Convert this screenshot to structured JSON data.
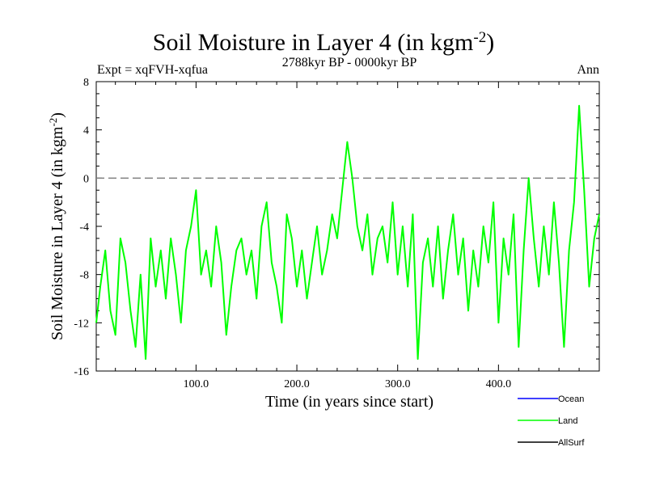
{
  "chart_data": {
    "type": "line",
    "title_main": "Soil Moisture in Layer 4 (in kgm",
    "title_sup": "-2",
    "title_close": ")",
    "subtitle": "2788kyr BP - 0000kyr BP",
    "left_label": "Expt = xqFVH-xqfua",
    "right_label": "Ann",
    "xlabel": "Time (in years since start)",
    "ylabel_main": "Soil Moisture in Layer 4 (in kgm",
    "ylabel_sup": "-2",
    "ylabel_close": ")",
    "xlim": [
      1,
      500
    ],
    "ylim": [
      -16,
      8
    ],
    "x_ticks": [
      100,
      200,
      300,
      400
    ],
    "x_tick_labels": [
      "100.0",
      "200.0",
      "300.0",
      "400.0"
    ],
    "y_ticks": [
      -16,
      -12,
      -8,
      -4,
      0,
      4,
      8
    ],
    "y_tick_labels": [
      "-16",
      "-12",
      "-8",
      "-4",
      "0",
      "4",
      "8"
    ],
    "reference_line": {
      "y": 0,
      "style": "dashed",
      "color": "#808080"
    },
    "legend": [
      {
        "name": "Ocean",
        "color": "#0000ff"
      },
      {
        "name": "Land",
        "color": "#00ff00"
      },
      {
        "name": "AllSurf",
        "color": "#000000"
      }
    ],
    "series": [
      {
        "name": "Land",
        "color": "#00ff00",
        "x": [
          1,
          5,
          10,
          15,
          20,
          25,
          30,
          35,
          40,
          45,
          50,
          55,
          60,
          65,
          70,
          75,
          80,
          85,
          90,
          95,
          100,
          105,
          110,
          115,
          120,
          125,
          130,
          135,
          140,
          145,
          150,
          155,
          160,
          165,
          170,
          175,
          180,
          185,
          190,
          195,
          200,
          205,
          210,
          215,
          220,
          225,
          230,
          235,
          240,
          245,
          250,
          255,
          260,
          265,
          270,
          275,
          280,
          285,
          290,
          295,
          300,
          305,
          310,
          315,
          320,
          325,
          330,
          335,
          340,
          345,
          350,
          355,
          360,
          365,
          370,
          375,
          380,
          385,
          390,
          395,
          400,
          405,
          410,
          415,
          420,
          425,
          430,
          435,
          440,
          445,
          450,
          455,
          460,
          465,
          470,
          475,
          480,
          485,
          490,
          495,
          500
        ],
        "values": [
          -12,
          -9,
          -6,
          -11,
          -13,
          -5,
          -7,
          -11,
          -14,
          -8,
          -15,
          -5,
          -9,
          -6,
          -10,
          -5,
          -8,
          -12,
          -6,
          -4,
          -1,
          -8,
          -6,
          -9,
          -4,
          -7,
          -13,
          -9,
          -6,
          -5,
          -8,
          -6,
          -10,
          -4,
          -2,
          -7,
          -9,
          -12,
          -3,
          -5,
          -9,
          -6,
          -10,
          -7,
          -4,
          -8,
          -6,
          -3,
          -5,
          -1,
          3,
          0,
          -4,
          -6,
          -3,
          -8,
          -5,
          -4,
          -7,
          -2,
          -8,
          -4,
          -9,
          -3,
          -15,
          -7,
          -5,
          -9,
          -4,
          -10,
          -6,
          -3,
          -8,
          -5,
          -11,
          -6,
          -9,
          -4,
          -7,
          -2,
          -12,
          -5,
          -8,
          -3,
          -14,
          -6,
          0,
          -5,
          -9,
          -4,
          -8,
          -2,
          -7,
          -14,
          -6,
          -2,
          6,
          -1,
          -9,
          -5,
          -3
        ]
      }
    ]
  }
}
